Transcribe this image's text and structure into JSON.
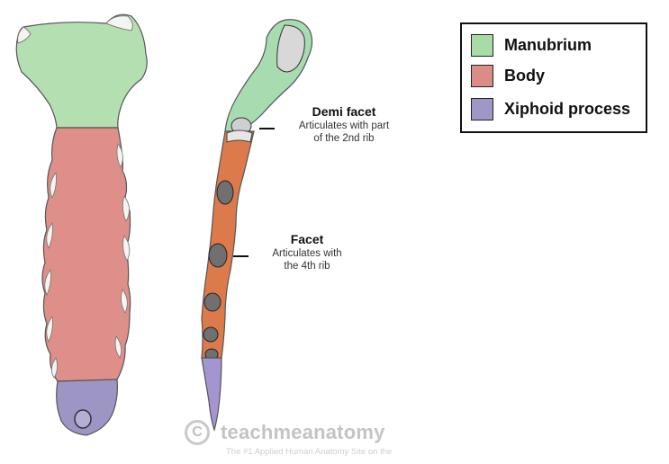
{
  "legend": {
    "items": [
      {
        "label": "Manubrium",
        "color": "#a9dba6"
      },
      {
        "label": "Body",
        "color": "#dc8c86"
      },
      {
        "label": "Xiphoid process",
        "color": "#9f97c6"
      }
    ]
  },
  "annotations": {
    "demi_facet": {
      "title": "Demi facet",
      "line1": "Articulates with part",
      "line2": "of the 2nd rib"
    },
    "facet": {
      "title": "Facet",
      "line1": "Articulates with",
      "line2": "the 4th rib"
    }
  },
  "lateral_colors": {
    "manubrium": "#a7dcb0",
    "body": "#dd7a4c",
    "xiphoid": "#a494d0"
  },
  "watermark": {
    "symbol": "C",
    "name": "teachmeanatomy",
    "tagline": "The #1 Applied Human Anatomy Site on the"
  }
}
